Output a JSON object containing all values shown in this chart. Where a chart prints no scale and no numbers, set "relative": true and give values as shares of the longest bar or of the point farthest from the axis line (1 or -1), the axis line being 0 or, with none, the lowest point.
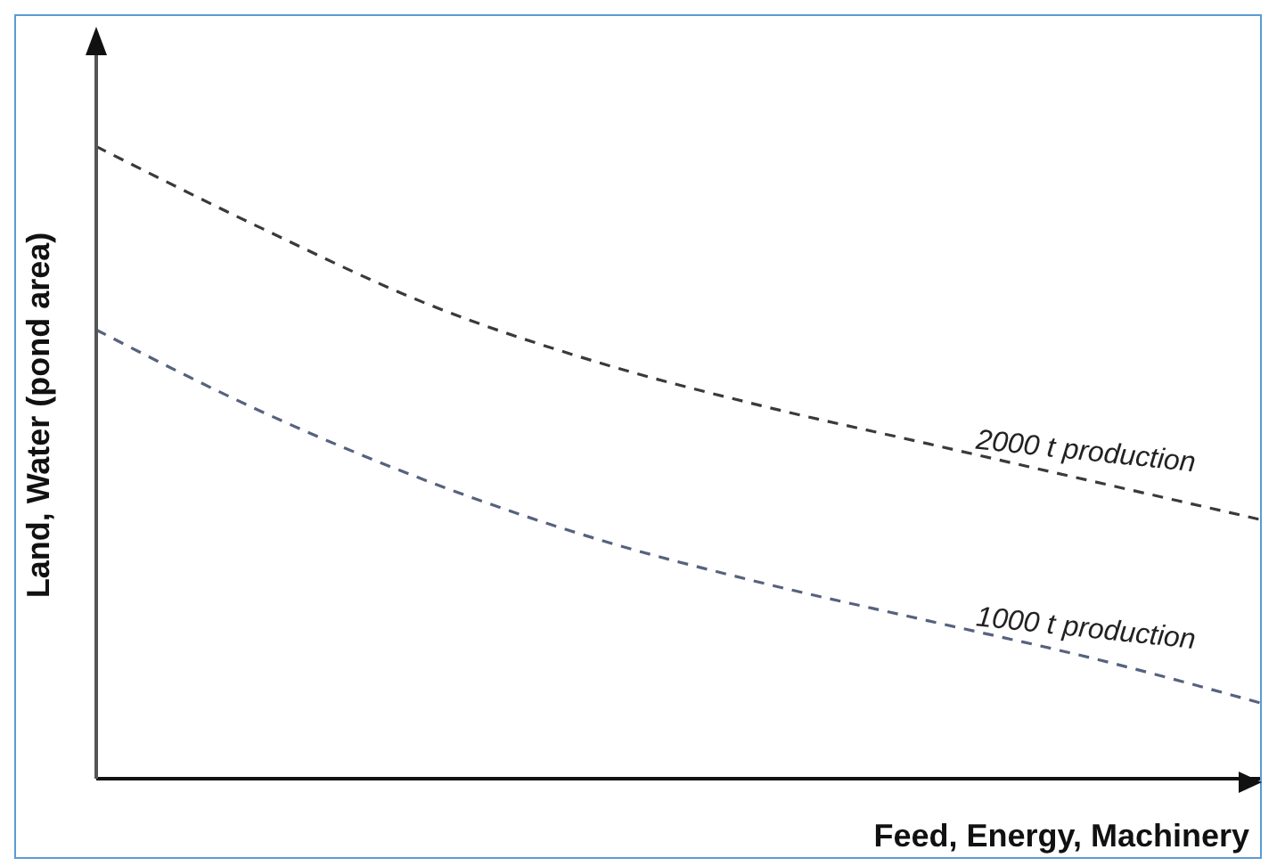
{
  "chart_data": {
    "type": "line",
    "relative": true,
    "xlabel": "Feed, Energy, Machinery",
    "ylabel": "Land,  Water (pond area)",
    "line_style": "dashed",
    "marker": "none",
    "categories": [
      null,
      null,
      null,
      null,
      null,
      null,
      null,
      null
    ],
    "series": [
      {
        "name": "2000 t production",
        "color": "#3a3a3a",
        "values": [
          1,
          0.87,
          0.75,
          0.66,
          0.59,
          0.53,
          0.47,
          0.41
        ]
      },
      {
        "name": "1000 t production",
        "color": "#56627e",
        "values": [
          0.71,
          0.58,
          0.47,
          0.38,
          0.31,
          0.25,
          0.19,
          0.12
        ]
      }
    ]
  }
}
